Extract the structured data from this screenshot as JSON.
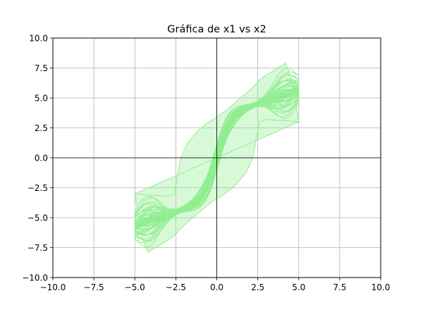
{
  "chart_data": {
    "type": "line",
    "title": "Gráfica de x1 vs x2",
    "xlabel": "",
    "ylabel": "",
    "xlim": [
      -10,
      10
    ],
    "ylim": [
      -10,
      10
    ],
    "x_ticks": [
      -10,
      -7.5,
      -5,
      -2.5,
      0,
      2.5,
      5,
      7.5,
      10
    ],
    "y_ticks": [
      -10,
      -7.5,
      -5,
      -2.5,
      0,
      2.5,
      5,
      7.5,
      10
    ],
    "x_tick_labels": [
      "−10.0",
      "−7.5",
      "−5.0",
      "−2.5",
      "0.0",
      "2.5",
      "5.0",
      "7.5",
      "10.0"
    ],
    "y_tick_labels": [
      "−10.0",
      "−7.5",
      "−5.0",
      "−2.5",
      "0.0",
      "2.5",
      "5.0",
      "7.5",
      "10.0"
    ],
    "grid": true,
    "zero_axes": true,
    "series": [
      {
        "color": "#90ee90",
        "x": [
          -5.0,
          -4.6,
          -4.2,
          -3.6,
          -3.0,
          -2.6,
          -2.4,
          -2.2,
          -1.8,
          -1.2,
          -0.6,
          0.0,
          0.6,
          1.2,
          1.8,
          2.2,
          2.4,
          2.6,
          3.0,
          3.6,
          4.2,
          4.6,
          5.0
        ],
        "y": [
          -3.0,
          -3.05,
          -3.1,
          -3.15,
          -3.2,
          -3.0,
          -1.5,
          0.0,
          1.2,
          2.2,
          2.9,
          3.4,
          4.0,
          4.7,
          5.4,
          5.9,
          6.2,
          6.5,
          6.9,
          7.4,
          7.9,
          6.5,
          3.0
        ]
      }
    ]
  }
}
